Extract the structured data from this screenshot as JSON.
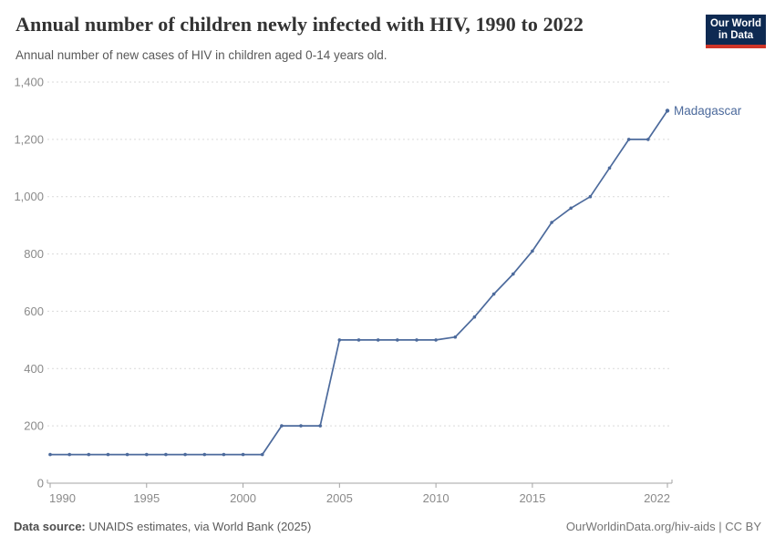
{
  "header": {
    "title": "Annual number of children newly infected with HIV, 1990 to 2022",
    "subtitle": "Annual number of new cases of HIV in children aged 0-14 years old.",
    "logo": {
      "line1": "Our World",
      "line2": "in Data"
    }
  },
  "chart_data": {
    "type": "line",
    "title": "Annual number of children newly infected with HIV, 1990 to 2022",
    "xlabel": "",
    "ylabel": "",
    "xlim": [
      1990,
      2022
    ],
    "ylim": [
      0,
      1400
    ],
    "grid": true,
    "legend_position": "end-of-line-label",
    "xticks": [
      1990,
      1995,
      2000,
      2005,
      2010,
      2015,
      2022
    ],
    "yticks": [
      0,
      200,
      400,
      600,
      800,
      1000,
      1200,
      1400
    ],
    "ytick_labels": [
      "0",
      "200",
      "400",
      "600",
      "800",
      "1,000",
      "1,200",
      "1,400"
    ],
    "x": [
      1990,
      1991,
      1992,
      1993,
      1994,
      1995,
      1996,
      1997,
      1998,
      1999,
      2000,
      2001,
      2002,
      2003,
      2004,
      2005,
      2006,
      2007,
      2008,
      2009,
      2010,
      2011,
      2012,
      2013,
      2014,
      2015,
      2016,
      2017,
      2018,
      2019,
      2020,
      2021,
      2022
    ],
    "series": [
      {
        "name": "Madagascar",
        "color": "#4C6A9C",
        "values": [
          100,
          100,
          100,
          100,
          100,
          100,
          100,
          100,
          100,
          100,
          100,
          100,
          200,
          200,
          200,
          500,
          500,
          500,
          500,
          500,
          500,
          510,
          580,
          660,
          730,
          810,
          910,
          960,
          1000,
          1100,
          1200,
          1200,
          1300
        ]
      }
    ],
    "colors": {
      "gridline": "#d9d9d9",
      "axis": "#a3a3a3",
      "tick_label": "#8a8a8a"
    }
  },
  "footer": {
    "datasource_label": "Data source:",
    "datasource_value": " UNAIDS estimates, via World Bank (2025)",
    "rights": "OurWorldinData.org/hiv-aids | CC BY"
  }
}
